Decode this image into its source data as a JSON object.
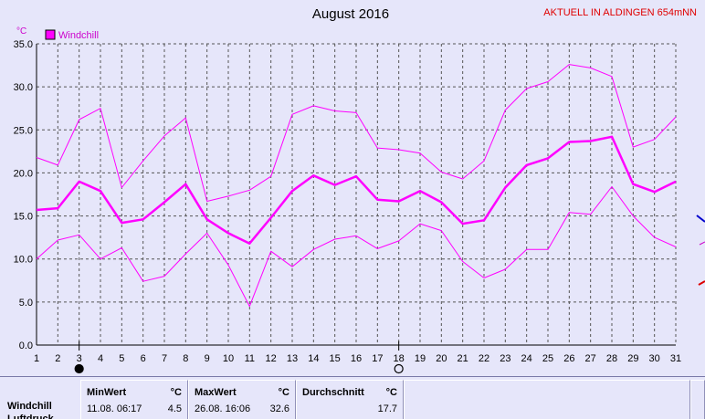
{
  "header": {
    "title": "August 2016",
    "station": "AKTUELL IN ALDINGEN 654mNN"
  },
  "chart_data": {
    "type": "line",
    "title": "August 2016",
    "ylabel": "°C",
    "xlabel": "",
    "ylim": [
      0,
      35
    ],
    "yticks": [
      "0.0",
      "5.0",
      "10.0",
      "15.0",
      "20.0",
      "25.0",
      "30.0",
      "35.0"
    ],
    "x": [
      1,
      2,
      3,
      4,
      5,
      6,
      7,
      8,
      9,
      10,
      11,
      12,
      13,
      14,
      15,
      16,
      17,
      18,
      19,
      20,
      21,
      22,
      23,
      24,
      25,
      26,
      27,
      28,
      29,
      30,
      31
    ],
    "legend": [
      "Windchill"
    ],
    "series": [
      {
        "role": "max",
        "color": "#ff00ff",
        "values": [
          21.8,
          20.9,
          26.2,
          27.5,
          18.3,
          21.4,
          24.3,
          26.4,
          16.7,
          17.3,
          18.0,
          19.6,
          26.8,
          27.8,
          27.2,
          27.0,
          22.9,
          22.7,
          22.3,
          20.1,
          19.3,
          21.4,
          27.3,
          29.8,
          30.6,
          32.6,
          32.2,
          31.2,
          23.0,
          23.9,
          26.5
        ]
      },
      {
        "role": "mean",
        "color": "#ff00ff",
        "values": [
          15.7,
          15.9,
          19.0,
          17.9,
          14.2,
          14.6,
          16.6,
          18.7,
          14.6,
          13.0,
          11.8,
          14.8,
          17.9,
          19.7,
          18.6,
          19.6,
          16.9,
          16.7,
          17.9,
          16.6,
          14.1,
          14.5,
          18.3,
          20.9,
          21.7,
          23.6,
          23.7,
          24.2,
          18.7,
          17.8,
          19.0
        ]
      },
      {
        "role": "min",
        "color": "#ff00ff",
        "values": [
          10.0,
          12.2,
          12.8,
          10.0,
          11.3,
          7.4,
          8.0,
          10.6,
          13.0,
          9.3,
          4.5,
          10.9,
          9.1,
          11.1,
          12.3,
          12.7,
          11.2,
          12.1,
          14.1,
          13.3,
          9.7,
          7.8,
          8.8,
          11.1,
          11.1,
          15.4,
          15.2,
          18.4,
          15.0,
          12.5,
          11.4
        ]
      }
    ],
    "moon_markers": [
      {
        "day": 3,
        "phase": "new-moon"
      },
      {
        "day": 18,
        "phase": "full-moon"
      }
    ],
    "grid": true,
    "legend_position": "top-left"
  },
  "stats": {
    "row_label": "Windchill",
    "row_label_partial": "Luftdruck",
    "min": {
      "header": "MinWert",
      "unit": "°C",
      "datetime": "11.08.  06:17",
      "value": "4.5"
    },
    "max": {
      "header": "MaxWert",
      "unit": "°C",
      "datetime": "26.08.  16:06",
      "value": "32.6"
    },
    "avg": {
      "header": "Durchschnitt",
      "unit": "°C",
      "value": "17.7"
    }
  },
  "colors": {
    "background": "#e6e6fa",
    "series": "#ff00ff",
    "grid": "#555555",
    "station_text": "#e00000"
  }
}
